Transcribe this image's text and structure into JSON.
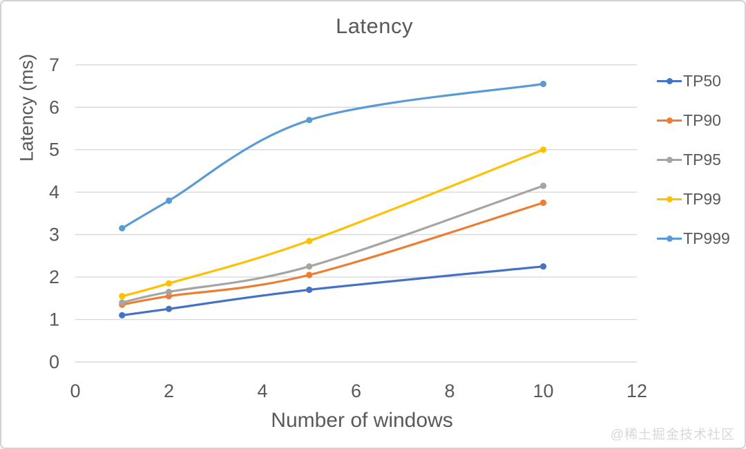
{
  "chart_data": {
    "type": "line",
    "title": "Latency",
    "xlabel": "Number of windows",
    "ylabel": "Latency (ms)",
    "x": [
      1,
      2,
      5,
      10
    ],
    "xlim": [
      0,
      12
    ],
    "ylim": [
      0,
      7
    ],
    "xticks": [
      0,
      2,
      4,
      6,
      8,
      10,
      12
    ],
    "yticks": [
      0,
      1,
      2,
      3,
      4,
      5,
      6,
      7
    ],
    "grid": "horizontal",
    "legend_position": "right",
    "smooth_lines": true,
    "series": [
      {
        "name": "TP50",
        "color": "#4472C4",
        "values": [
          1.1,
          1.25,
          1.7,
          2.25
        ]
      },
      {
        "name": "TP90",
        "color": "#ED7D31",
        "values": [
          1.35,
          1.55,
          2.05,
          3.75
        ]
      },
      {
        "name": "TP95",
        "color": "#A5A5A5",
        "values": [
          1.4,
          1.65,
          2.25,
          4.15
        ]
      },
      {
        "name": "TP99",
        "color": "#FFC000",
        "values": [
          1.55,
          1.85,
          2.85,
          5.0
        ]
      },
      {
        "name": "TP999",
        "color": "#5B9BD5",
        "values": [
          3.15,
          3.8,
          5.7,
          6.55
        ]
      }
    ],
    "colors": {
      "grid": "#D9D9D9",
      "text": "#595959"
    }
  },
  "watermark": {
    "text": "@稀土掘金技术社区"
  }
}
